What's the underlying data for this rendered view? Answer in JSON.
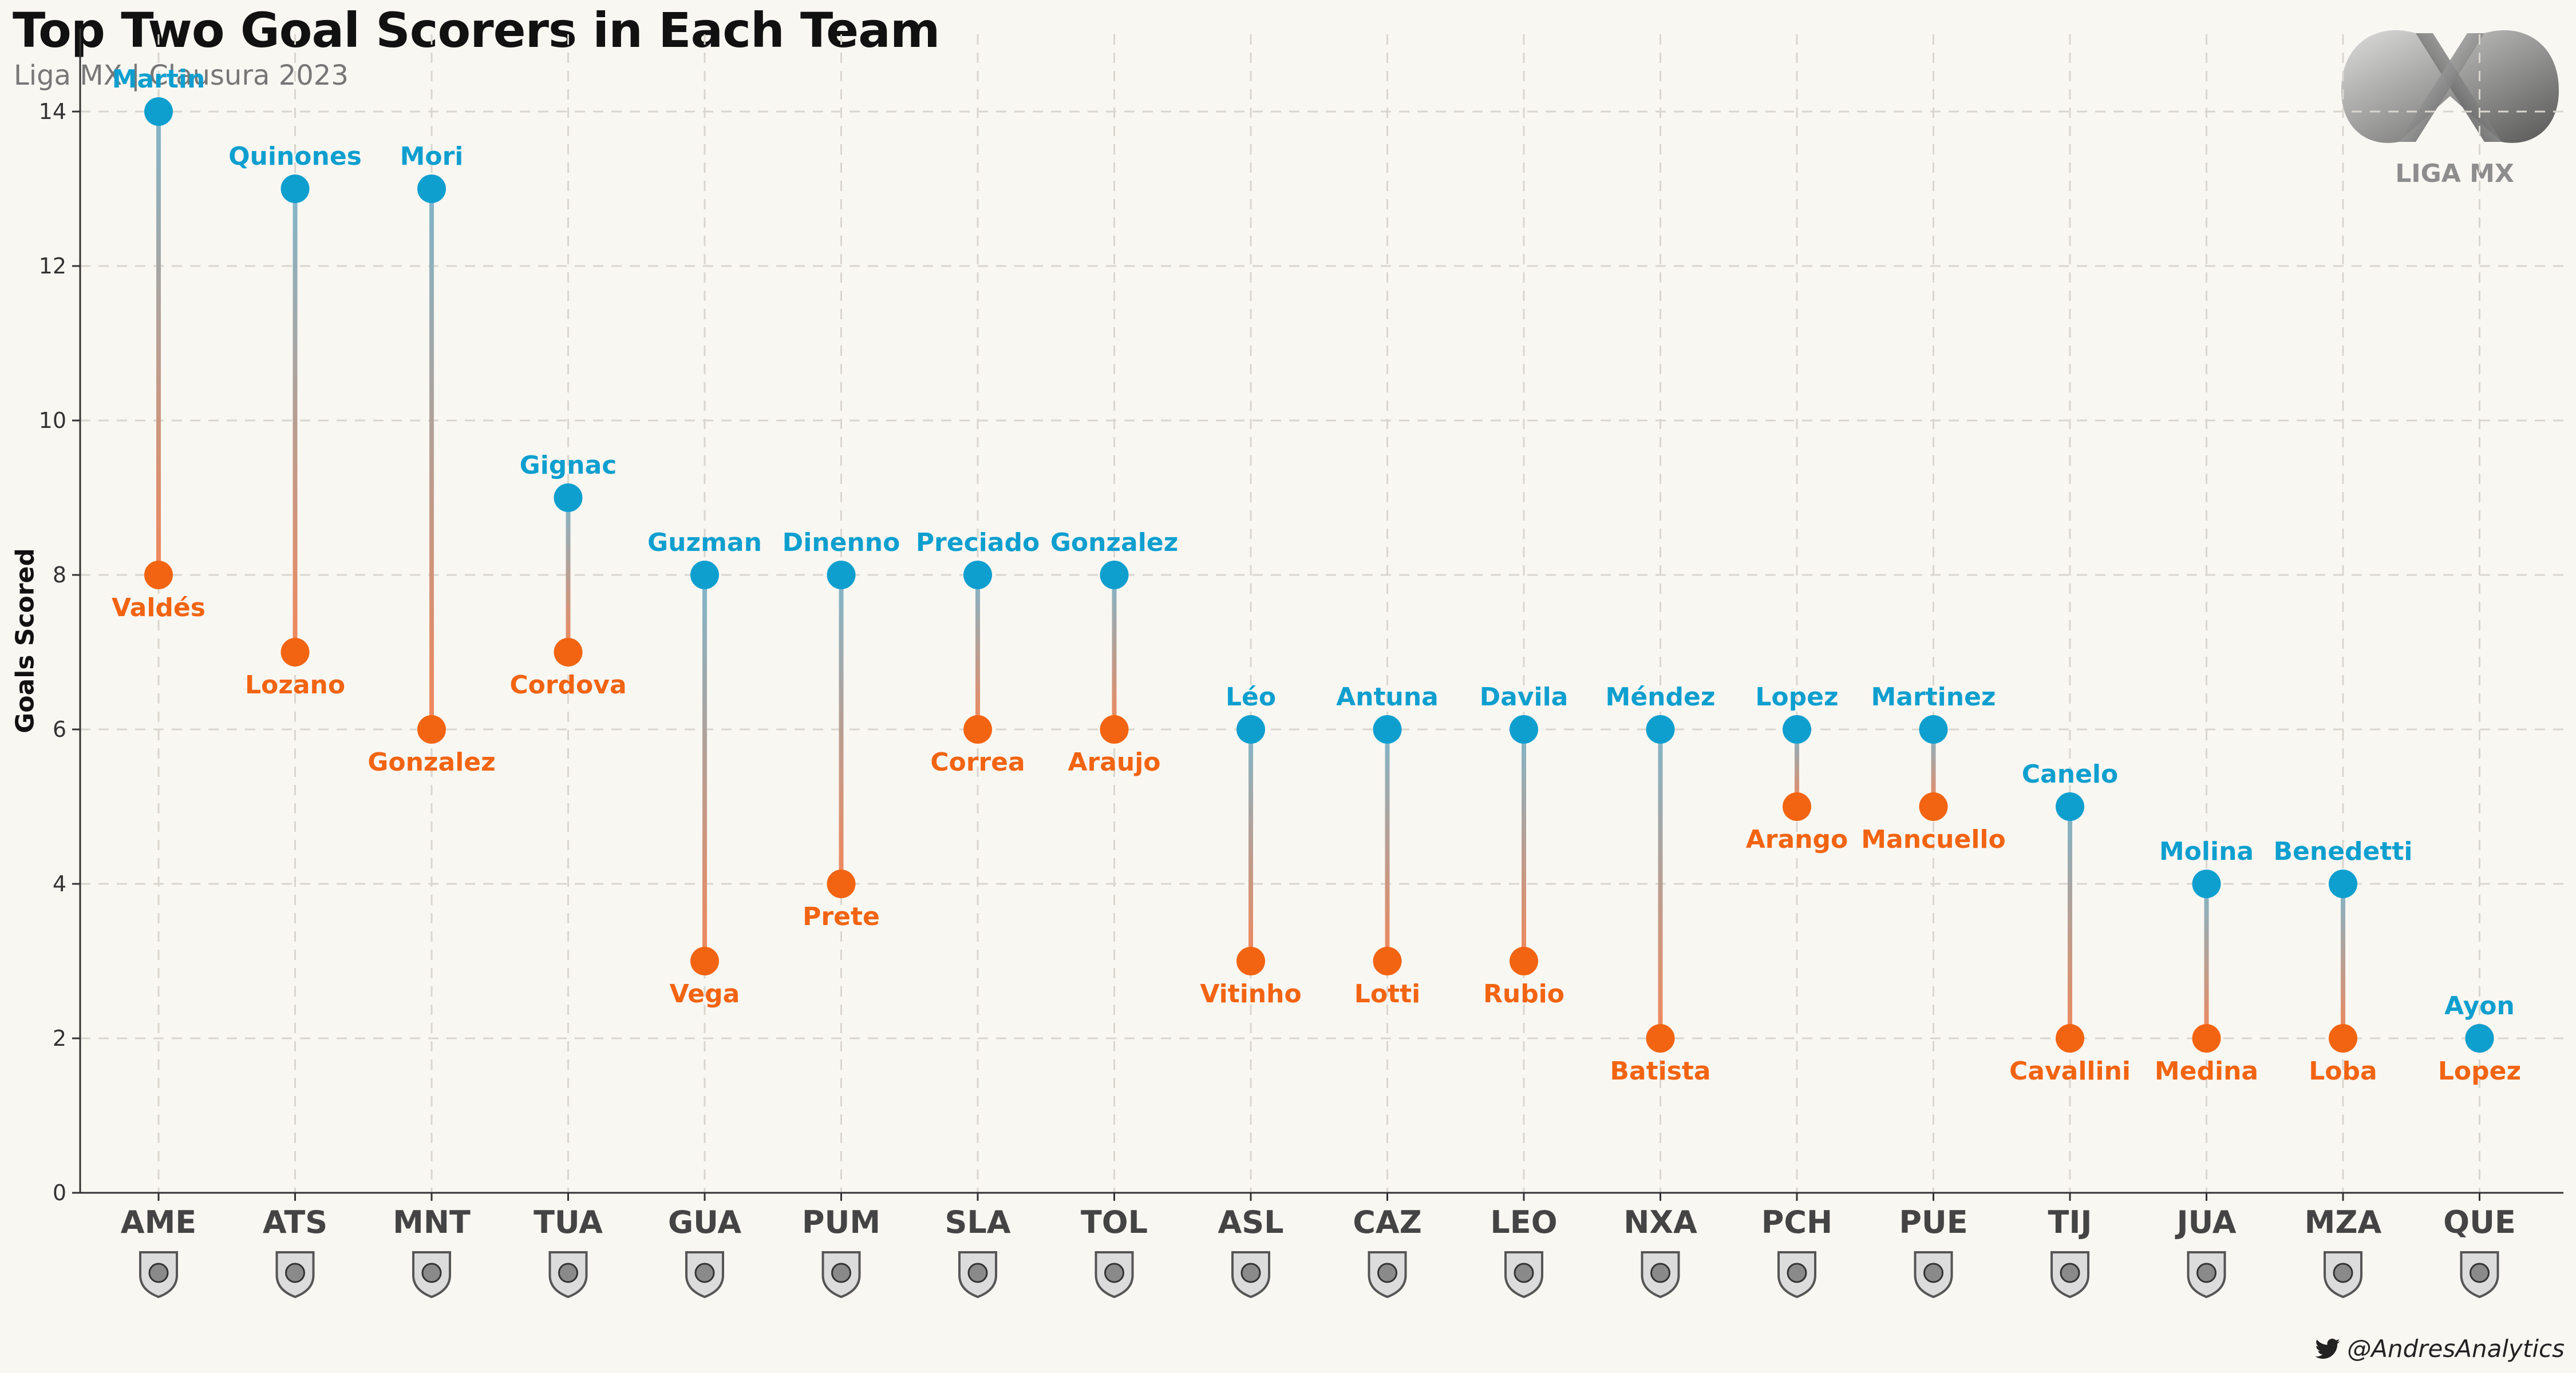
{
  "title": "Top Two Goal Scorers in Each Team",
  "subtitle": "Liga MX | Clausura 2023",
  "credit": "@AndresAnalytics",
  "logo_text": "LIGA MX",
  "colors": {
    "top": "#0f9fcf",
    "second": "#f26412",
    "axis": "#333333",
    "grid": "#d9d6cf",
    "background": "#f9f7f2"
  },
  "chart_data": {
    "type": "dumbbell",
    "ylabel": "Goals Scored",
    "ylim": [
      0,
      15
    ],
    "yticks": [
      0,
      2,
      4,
      6,
      8,
      10,
      12,
      14
    ],
    "grid": true,
    "teams": [
      {
        "team": "AME",
        "top": {
          "name": "Martin",
          "goals": 14
        },
        "second": {
          "name": "Valdés",
          "goals": 8
        }
      },
      {
        "team": "ATS",
        "top": {
          "name": "Quinones",
          "goals": 13
        },
        "second": {
          "name": "Lozano",
          "goals": 7
        }
      },
      {
        "team": "MNT",
        "top": {
          "name": "Mori",
          "goals": 13
        },
        "second": {
          "name": "Gonzalez",
          "goals": 6
        }
      },
      {
        "team": "TUA",
        "top": {
          "name": "Gignac",
          "goals": 9
        },
        "second": {
          "name": "Cordova",
          "goals": 7
        }
      },
      {
        "team": "GUA",
        "top": {
          "name": "Guzman",
          "goals": 8
        },
        "second": {
          "name": "Vega",
          "goals": 3
        }
      },
      {
        "team": "PUM",
        "top": {
          "name": "Dinenno",
          "goals": 8
        },
        "second": {
          "name": "Prete",
          "goals": 4
        }
      },
      {
        "team": "SLA",
        "top": {
          "name": "Preciado",
          "goals": 8
        },
        "second": {
          "name": "Correa",
          "goals": 6
        }
      },
      {
        "team": "TOL",
        "top": {
          "name": "Gonzalez",
          "goals": 8
        },
        "second": {
          "name": "Araujo",
          "goals": 6
        }
      },
      {
        "team": "ASL",
        "top": {
          "name": "Léo",
          "goals": 6
        },
        "second": {
          "name": "Vitinho",
          "goals": 3
        }
      },
      {
        "team": "CAZ",
        "top": {
          "name": "Antuna",
          "goals": 6
        },
        "second": {
          "name": "Lotti",
          "goals": 3
        }
      },
      {
        "team": "LEO",
        "top": {
          "name": "Davila",
          "goals": 6
        },
        "second": {
          "name": "Rubio",
          "goals": 3
        }
      },
      {
        "team": "NXA",
        "top": {
          "name": "Méndez",
          "goals": 6
        },
        "second": {
          "name": "Batista",
          "goals": 2
        }
      },
      {
        "team": "PCH",
        "top": {
          "name": "Lopez",
          "goals": 6
        },
        "second": {
          "name": "Arango",
          "goals": 5
        }
      },
      {
        "team": "PUE",
        "top": {
          "name": "Martinez",
          "goals": 6
        },
        "second": {
          "name": "Mancuello",
          "goals": 5
        }
      },
      {
        "team": "TIJ",
        "top": {
          "name": "Canelo",
          "goals": 5
        },
        "second": {
          "name": "Cavallini",
          "goals": 2
        }
      },
      {
        "team": "JUA",
        "top": {
          "name": "Molina",
          "goals": 4
        },
        "second": {
          "name": "Medina",
          "goals": 2
        }
      },
      {
        "team": "MZA",
        "top": {
          "name": "Benedetti",
          "goals": 4
        },
        "second": {
          "name": "Loba",
          "goals": 2
        }
      },
      {
        "team": "QUE",
        "top": {
          "name": "Ayon",
          "goals": 2
        },
        "second": {
          "name": "Lopez",
          "goals": 2
        }
      }
    ]
  }
}
